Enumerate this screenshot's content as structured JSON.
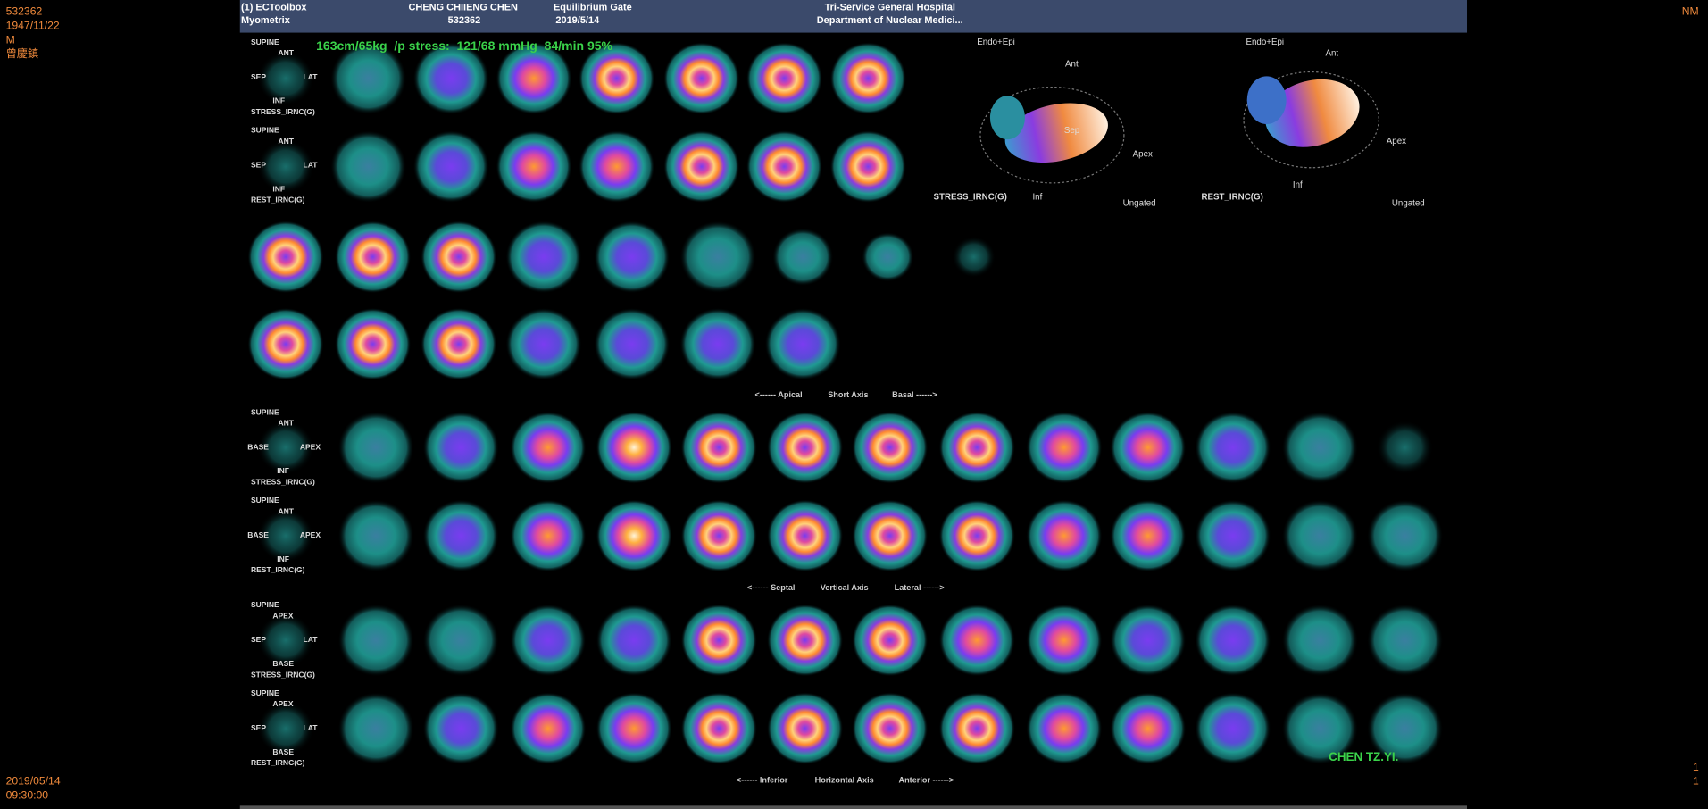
{
  "patient": {
    "id": "532362",
    "birth_date": "1947/11/22",
    "sex": "M",
    "name": "曾慶鎮"
  },
  "modality": "NM",
  "study_date": "2019/05/14",
  "study_time": "09:30:00",
  "header": {
    "app": "(1) ECToolbox",
    "module": "Myometrix",
    "patient_name": "CHENG CHIIENG CHEN",
    "patient_id": "532362",
    "protocol": "Equilibrium Gate",
    "date": "2019/5/14",
    "hospital": "Tri-Service General Hospital",
    "department": "Department of Nuclear Medici..."
  },
  "stress_info": "163cm/65kg  /p stress:  121/68 mmHg  84/min 95%",
  "panels": [
    {
      "position": "SUPINE",
      "top": "ANT",
      "left": "SEP",
      "right": "LAT",
      "bottom": "INF",
      "series": "STRESS_IRNC(G)"
    },
    {
      "position": "SUPINE",
      "top": "ANT",
      "left": "SEP",
      "right": "LAT",
      "bottom": "INF",
      "series": "REST_IRNC(G)"
    },
    {
      "position": "SUPINE",
      "top": "ANT",
      "left": "BASE",
      "right": "APEX",
      "bottom": "INF",
      "series": "STRESS_IRNC(G)"
    },
    {
      "position": "SUPINE",
      "top": "ANT",
      "left": "BASE",
      "right": "APEX",
      "bottom": "INF",
      "series": "REST_IRNC(G)"
    },
    {
      "position": "SUPINE",
      "top": "APEX",
      "left": "SEP",
      "right": "LAT",
      "bottom": "BASE",
      "series": "STRESS_IRNC(G)"
    },
    {
      "position": "SUPINE",
      "top": "APEX",
      "left": "SEP",
      "right": "LAT",
      "bottom": "BASE",
      "series": "REST_IRNC(G)"
    }
  ],
  "axes": [
    {
      "left": "<------ Apical",
      "name": "Short Axis",
      "right": "Basal ------>"
    },
    {
      "left": "<------ Septal",
      "name": "Vertical Axis",
      "right": "Lateral ------>"
    },
    {
      "left": "<------ Inferior",
      "name": "Horizontal Axis",
      "right": "Anterior ------>"
    }
  ],
  "polar": [
    {
      "mode": "Endo+Epi",
      "top": "Ant",
      "right": "Apex",
      "bottom": "Inf",
      "center": "Sep",
      "title": "STRESS_IRNC(G)",
      "gating": "Ungated"
    },
    {
      "mode": "Endo+Epi",
      "top": "Ant",
      "right": "Apex",
      "bottom": "Inf",
      "title": "REST_IRNC(G)",
      "gating": "Ungated"
    }
  ],
  "page_numbers": [
    "1",
    "1"
  ],
  "physician": "CHEN TZ.YI."
}
